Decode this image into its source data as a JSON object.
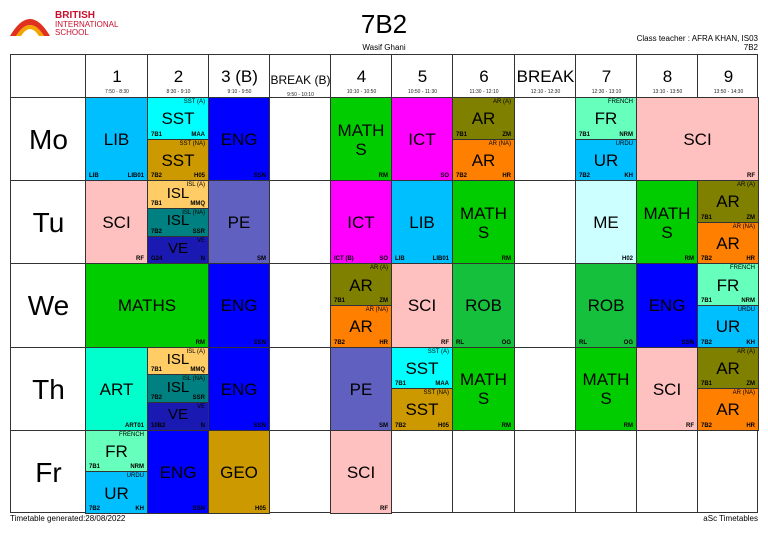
{
  "header": {
    "school_name": [
      "BRITISH",
      "INTERNATIONAL",
      "SCHOOL"
    ],
    "title": "7B2",
    "subtitle": "Wasif Ghani",
    "class_teacher": "Class teacher : AFRA KHAN, IS03",
    "class_code": "7B2"
  },
  "periods": [
    {
      "label": "1",
      "time": "7:50 - 8:30"
    },
    {
      "label": "2",
      "time": "8:30 - 9:10"
    },
    {
      "label": "3 (B)",
      "time": "9:10 - 9:50"
    },
    {
      "label": "BREAK (B)",
      "time": "9:50 - 10:10"
    },
    {
      "label": "4",
      "time": "10:10 - 10:50"
    },
    {
      "label": "5",
      "time": "10:50 - 11:30"
    },
    {
      "label": "6",
      "time": "11:30 - 12:10"
    },
    {
      "label": "BREAK",
      "time": "12:10 - 12:30"
    },
    {
      "label": "7",
      "time": "12:30 - 13:10"
    },
    {
      "label": "8",
      "time": "13:10 - 13:50"
    },
    {
      "label": "9",
      "time": "13:50 - 14:30"
    }
  ],
  "days": [
    "Mo",
    "Tu",
    "We",
    "Th",
    "Fr"
  ],
  "colors": {
    "LIB": "#00bfff",
    "SST_A": "#00ffff",
    "SST_NA": "#cc9900",
    "ENG": "#0000ff",
    "MATHS": "#00cc00",
    "ICT": "#ff00ff",
    "AR_A": "#808000",
    "AR_NA": "#ff8000",
    "FR": "#66ffbb",
    "UR": "#00bfff",
    "SCI": "#ffc0c0",
    "ISL_A": "#ffcc66",
    "ISL_NA": "#008080",
    "VE": "#1a1ab3",
    "PE": "#6060c0",
    "ME": "#ccffff",
    "ROB": "#14c03c",
    "ART": "#00ffcc",
    "GEO": "#cc9900"
  },
  "cells": [
    {
      "d": 0,
      "c": 1,
      "rs": 0,
      "re": 1,
      "main": "LIB",
      "bl": "LIB",
      "br": "LIB01",
      "color": "#00bfff"
    },
    {
      "d": 0,
      "c": 2,
      "rs": 0,
      "re": 0.5,
      "main": "SST",
      "tr": "SST (A)",
      "bl": "7B1",
      "br": "MAA",
      "color": "#00ffff"
    },
    {
      "d": 0,
      "c": 2,
      "rs": 0.5,
      "re": 1,
      "main": "SST",
      "tr": "SST (NA)",
      "bl": "7B2",
      "br": "H05",
      "color": "#cc9900"
    },
    {
      "d": 0,
      "c": 3,
      "rs": 0,
      "re": 1,
      "main": "ENG",
      "br": "SSN",
      "color": "#0000ff"
    },
    {
      "d": 0,
      "c": 5,
      "rs": 0,
      "re": 1,
      "main": "MATH S",
      "br": "RM",
      "color": "#00cc00"
    },
    {
      "d": 0,
      "c": 6,
      "rs": 0,
      "re": 1,
      "main": "ICT",
      "br": "SO",
      "color": "#ff00ff"
    },
    {
      "d": 0,
      "c": 7,
      "rs": 0,
      "re": 0.5,
      "main": "AR",
      "tr": "AR (A)",
      "bl": "7B1",
      "br": "ZM",
      "color": "#808000"
    },
    {
      "d": 0,
      "c": 7,
      "rs": 0.5,
      "re": 1,
      "main": "AR",
      "tr": "AR (NA)",
      "bl": "7B2",
      "br": "HR",
      "color": "#ff8000"
    },
    {
      "d": 0,
      "c": 9,
      "rs": 0,
      "re": 0.5,
      "main": "FR",
      "tr": "FRENCH",
      "bl": "7B1",
      "br": "NRM",
      "color": "#66ffbb"
    },
    {
      "d": 0,
      "c": 9,
      "rs": 0.5,
      "re": 1,
      "main": "UR",
      "tr": "URDU",
      "bl": "7B2",
      "br": "KH",
      "color": "#00bfff"
    },
    {
      "d": 0,
      "c": 10,
      "ce": 11,
      "rs": 0,
      "re": 1,
      "main": "SCI",
      "br": "RF",
      "color": "#ffc0c0"
    },
    {
      "d": 1,
      "c": 1,
      "rs": 0,
      "re": 1,
      "main": "SCI",
      "br": "RF",
      "color": "#ffc0c0"
    },
    {
      "d": 1,
      "c": 2,
      "rs": 0,
      "re": 0.333,
      "main": "ISL",
      "tr": "ISL (A)",
      "bl": "7B1",
      "br": "MMQ",
      "color": "#ffcc66"
    },
    {
      "d": 1,
      "c": 2,
      "rs": 0.333,
      "re": 0.667,
      "main": "ISL",
      "tr": "ISL (NA)",
      "bl": "7B2",
      "br": "SSR",
      "color": "#008080"
    },
    {
      "d": 1,
      "c": 2,
      "rs": 0.667,
      "re": 1,
      "main": "VE",
      "tr": "VE",
      "bl": "G24",
      "br": "N",
      "color": "#1a1ab3"
    },
    {
      "d": 1,
      "c": 3,
      "rs": 0,
      "re": 1,
      "main": "PE",
      "br": "SM",
      "color": "#6060c0"
    },
    {
      "d": 1,
      "c": 5,
      "rs": 0,
      "re": 1,
      "main": "ICT",
      "bl": "ICT (B)",
      "br": "SO",
      "color": "#ff00ff"
    },
    {
      "d": 1,
      "c": 6,
      "rs": 0,
      "re": 1,
      "main": "LIB",
      "bl": "LIB",
      "br": "LIB01",
      "color": "#00bfff"
    },
    {
      "d": 1,
      "c": 7,
      "rs": 0,
      "re": 1,
      "main": "MATH S",
      "br": "RM",
      "color": "#00cc00"
    },
    {
      "d": 1,
      "c": 9,
      "rs": 0,
      "re": 1,
      "main": "ME",
      "br": "H02",
      "color": "#ccffff"
    },
    {
      "d": 1,
      "c": 10,
      "rs": 0,
      "re": 1,
      "main": "MATH S",
      "br": "RM",
      "color": "#00cc00"
    },
    {
      "d": 1,
      "c": 11,
      "rs": 0,
      "re": 0.5,
      "main": "AR",
      "tr": "AR (A)",
      "bl": "7B1",
      "br": "ZM",
      "color": "#808000"
    },
    {
      "d": 1,
      "c": 11,
      "rs": 0.5,
      "re": 1,
      "main": "AR",
      "tr": "AR (NA)",
      "bl": "7B2",
      "br": "HR",
      "color": "#ff8000"
    },
    {
      "d": 2,
      "c": 1,
      "ce": 2,
      "rs": 0,
      "re": 1,
      "main": "MATHS",
      "br": "RM",
      "color": "#00cc00"
    },
    {
      "d": 2,
      "c": 3,
      "rs": 0,
      "re": 1,
      "main": "ENG",
      "br": "SSN",
      "color": "#0000ff"
    },
    {
      "d": 2,
      "c": 5,
      "rs": 0,
      "re": 0.5,
      "main": "AR",
      "tr": "AR (A)",
      "bl": "7B1",
      "br": "ZM",
      "color": "#808000"
    },
    {
      "d": 2,
      "c": 5,
      "rs": 0.5,
      "re": 1,
      "main": "AR",
      "tr": "AR (NA)",
      "bl": "7B2",
      "br": "HR",
      "color": "#ff8000"
    },
    {
      "d": 2,
      "c": 6,
      "rs": 0,
      "re": 1,
      "main": "SCI",
      "br": "RF",
      "color": "#ffc0c0"
    },
    {
      "d": 2,
      "c": 7,
      "rs": 0,
      "re": 1,
      "main": "ROB",
      "bl": "RL",
      "br": "OG",
      "color": "#14c03c"
    },
    {
      "d": 2,
      "c": 9,
      "rs": 0,
      "re": 1,
      "main": "ROB",
      "bl": "RL",
      "br": "OG",
      "color": "#14c03c"
    },
    {
      "d": 2,
      "c": 10,
      "rs": 0,
      "re": 1,
      "main": "ENG",
      "br": "SSN",
      "color": "#0000ff"
    },
    {
      "d": 2,
      "c": 11,
      "rs": 0,
      "re": 0.5,
      "main": "FR",
      "tr": "FRENCH",
      "bl": "7B1",
      "br": "NRM",
      "color": "#66ffbb"
    },
    {
      "d": 2,
      "c": 11,
      "rs": 0.5,
      "re": 1,
      "main": "UR",
      "tr": "URDU",
      "bl": "7B2",
      "br": "KH",
      "color": "#00bfff"
    },
    {
      "d": 3,
      "c": 1,
      "rs": 0,
      "re": 1,
      "main": "ART",
      "br": "ART01",
      "color": "#00ffcc"
    },
    {
      "d": 3,
      "c": 2,
      "rs": 0,
      "re": 0.333,
      "main": "ISL",
      "tr": "ISL (A)",
      "bl": "7B1",
      "br": "MMQ",
      "color": "#ffcc66"
    },
    {
      "d": 3,
      "c": 2,
      "rs": 0.333,
      "re": 0.667,
      "main": "ISL",
      "tr": "ISL (NA)",
      "bl": "7B2",
      "br": "SSR",
      "color": "#008080"
    },
    {
      "d": 3,
      "c": 2,
      "rs": 0.667,
      "re": 1,
      "main": "VE",
      "tr": "VE",
      "bl": "10B2",
      "br": "N",
      "color": "#1a1ab3"
    },
    {
      "d": 3,
      "c": 3,
      "rs": 0,
      "re": 1,
      "main": "ENG",
      "br": "SSN",
      "color": "#0000ff"
    },
    {
      "d": 3,
      "c": 5,
      "rs": 0,
      "re": 1,
      "main": "PE",
      "br": "SM",
      "color": "#6060c0"
    },
    {
      "d": 3,
      "c": 6,
      "rs": 0,
      "re": 0.5,
      "main": "SST",
      "tr": "SST (A)",
      "bl": "7B1",
      "br": "MAA",
      "color": "#00ffff"
    },
    {
      "d": 3,
      "c": 6,
      "rs": 0.5,
      "re": 1,
      "main": "SST",
      "tr": "SST (NA)",
      "bl": "7B2",
      "br": "H05",
      "color": "#cc9900"
    },
    {
      "d": 3,
      "c": 7,
      "rs": 0,
      "re": 1,
      "main": "MATH S",
      "br": "RM",
      "color": "#00cc00"
    },
    {
      "d": 3,
      "c": 9,
      "rs": 0,
      "re": 1,
      "main": "MATH S",
      "br": "RM",
      "color": "#00cc00"
    },
    {
      "d": 3,
      "c": 10,
      "rs": 0,
      "re": 1,
      "main": "SCI",
      "br": "RF",
      "color": "#ffc0c0"
    },
    {
      "d": 3,
      "c": 11,
      "rs": 0,
      "re": 0.5,
      "main": "AR",
      "tr": "AR (A)",
      "bl": "7B1",
      "br": "ZM",
      "color": "#808000"
    },
    {
      "d": 3,
      "c": 11,
      "rs": 0.5,
      "re": 1,
      "main": "AR",
      "tr": "AR (NA)",
      "bl": "7B2",
      "br": "HR",
      "color": "#ff8000"
    },
    {
      "d": 4,
      "c": 1,
      "rs": 0,
      "re": 0.5,
      "main": "FR",
      "tr": "FRENCH",
      "bl": "7B1",
      "br": "NRM",
      "color": "#66ffbb"
    },
    {
      "d": 4,
      "c": 1,
      "rs": 0.5,
      "re": 1,
      "main": "UR",
      "tr": "URDU",
      "bl": "7B2",
      "br": "KH",
      "color": "#00bfff"
    },
    {
      "d": 4,
      "c": 2,
      "rs": 0,
      "re": 1,
      "main": "ENG",
      "br": "SSN",
      "color": "#0000ff"
    },
    {
      "d": 4,
      "c": 3,
      "rs": 0,
      "re": 1,
      "main": "GEO",
      "br": "H05",
      "color": "#cc9900"
    },
    {
      "d": 4,
      "c": 5,
      "rs": 0,
      "re": 1,
      "main": "SCI",
      "br": "RF",
      "color": "#ffc0c0"
    }
  ],
  "footer": {
    "generated": "Timetable generated:28/08/2022",
    "brand": "aSc Timetables"
  }
}
